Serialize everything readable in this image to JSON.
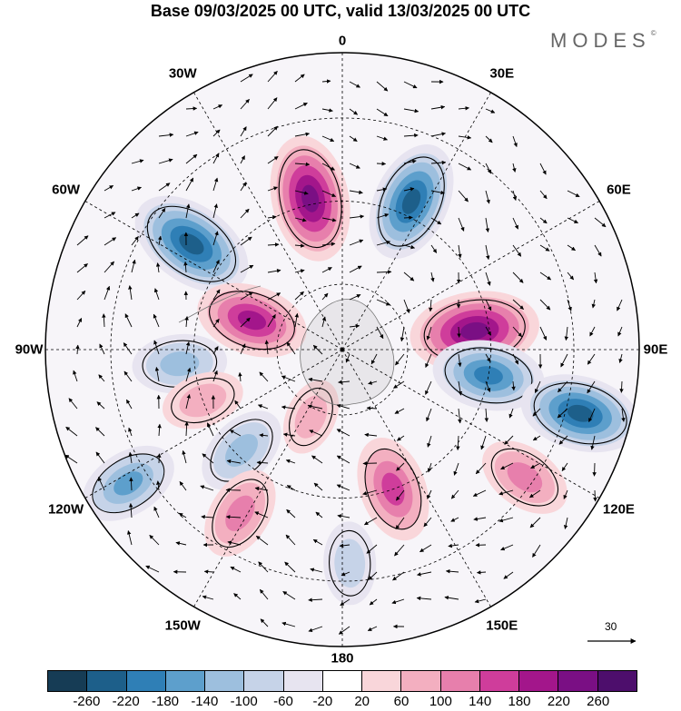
{
  "title": "Base 09/03/2025 00 UTC, valid 13/03/2025 00 UTC",
  "logo": {
    "text": "MODES",
    "mark": "©"
  },
  "longitude_labels": [
    {
      "text": "0",
      "lon": 0
    },
    {
      "text": "30E",
      "lon": 30
    },
    {
      "text": "60E",
      "lon": 60
    },
    {
      "text": "90E",
      "lon": 90
    },
    {
      "text": "120E",
      "lon": 120
    },
    {
      "text": "150E",
      "lon": 150
    },
    {
      "text": "180",
      "lon": 180
    },
    {
      "text": "150W",
      "lon": -150
    },
    {
      "text": "120W",
      "lon": -120
    },
    {
      "text": "90W",
      "lon": -90
    },
    {
      "text": "60W",
      "lon": -60
    },
    {
      "text": "30W",
      "lon": -30
    }
  ],
  "vector_scale": {
    "value": "30"
  },
  "colorbar": {
    "ticks": [
      "-260",
      "-220",
      "-180",
      "-140",
      "-100",
      "-60",
      "-20",
      "20",
      "60",
      "100",
      "140",
      "180",
      "220",
      "260"
    ],
    "colors": [
      "#163c55",
      "#1d5f8a",
      "#2f7fb6",
      "#5d9fcc",
      "#9dbfde",
      "#c6d3e8",
      "#e7e4f0",
      "#ffffff",
      "#f9d6da",
      "#f3afc0",
      "#e77fac",
      "#cf3d9b",
      "#a3168b",
      "#7a0f84",
      "#4d0e6c"
    ]
  },
  "anomalies": [
    {
      "lon": -55,
      "lat_r": 0.62,
      "value": -250
    },
    {
      "lon": -12,
      "lat_r": 0.52,
      "value": 250
    },
    {
      "lon": 25,
      "lat_r": 0.55,
      "value": -230
    },
    {
      "lon": 82,
      "lat_r": 0.45,
      "value": 260
    },
    {
      "lon": 100,
      "lat_r": 0.5,
      "value": -200
    },
    {
      "lon": 105,
      "lat_r": 0.83,
      "value": -230
    },
    {
      "lon": -72,
      "lat_r": 0.32,
      "value": 200
    },
    {
      "lon": -95,
      "lat_r": 0.55,
      "value": -140
    },
    {
      "lon": -110,
      "lat_r": 0.5,
      "value": 100
    },
    {
      "lon": -135,
      "lat_r": 0.48,
      "value": -140
    },
    {
      "lon": -122,
      "lat_r": 0.85,
      "value": -160
    },
    {
      "lon": -148,
      "lat_r": 0.65,
      "value": 140
    },
    {
      "lon": 160,
      "lat_r": 0.5,
      "value": 180
    },
    {
      "lon": 125,
      "lat_r": 0.75,
      "value": 140
    },
    {
      "lon": 178,
      "lat_r": 0.72,
      "value": -100
    },
    {
      "lon": -155,
      "lat_r": 0.25,
      "value": 80
    }
  ]
}
